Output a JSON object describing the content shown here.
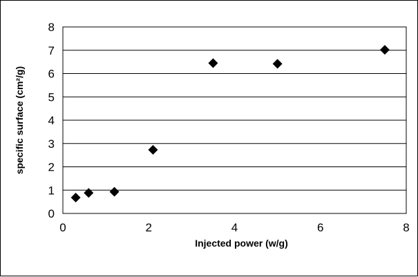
{
  "chart_data": {
    "type": "scatter",
    "title": "",
    "xlabel": "Injected power (w/g)",
    "ylabel": "specific surface (cm²/g)",
    "xlim": [
      0,
      8
    ],
    "ylim": [
      0,
      8
    ],
    "x_ticks": [
      0,
      2,
      4,
      6,
      8
    ],
    "y_ticks": [
      0,
      1,
      2,
      3,
      4,
      5,
      6,
      7,
      8
    ],
    "grid": "horizontal",
    "legend": "none",
    "marker": "diamond",
    "marker_color": "#000000",
    "series": [
      {
        "x": [
          0.3,
          0.6,
          1.2,
          2.1,
          3.5,
          5.0,
          7.5
        ],
        "y": [
          0.68,
          0.88,
          0.93,
          2.73,
          6.45,
          6.42,
          7.02
        ]
      }
    ]
  }
}
